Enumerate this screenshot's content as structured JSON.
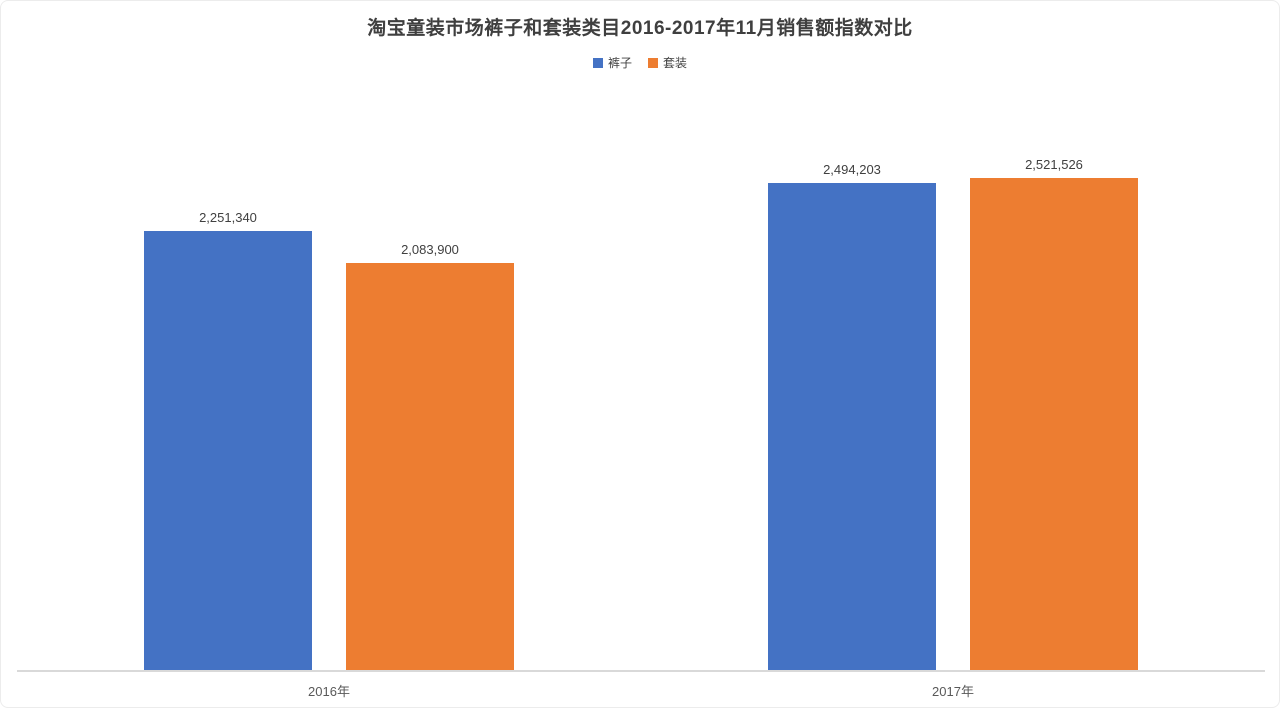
{
  "chart_data": {
    "type": "bar",
    "title": "淘宝童装市场裤子和套装类目2016-2017年11月销售额指数对比",
    "categories": [
      "2016年",
      "2017年"
    ],
    "series": [
      {
        "name": "裤子",
        "color": "#4472C4",
        "values": [
          2251340,
          2494203
        ],
        "value_labels": [
          "2,251,340",
          "2,494,203"
        ]
      },
      {
        "name": "套装",
        "color": "#ED7D31",
        "values": [
          2083900,
          2521526
        ],
        "value_labels": [
          "2,083,900",
          "2,521,526"
        ]
      }
    ],
    "ylim": [
      0,
      2521526
    ],
    "grid": false,
    "legend_position": "top-center",
    "axis_line_color": "#d9d9d9",
    "value_label_color": "#404040",
    "axis_label_color": "#595959"
  }
}
